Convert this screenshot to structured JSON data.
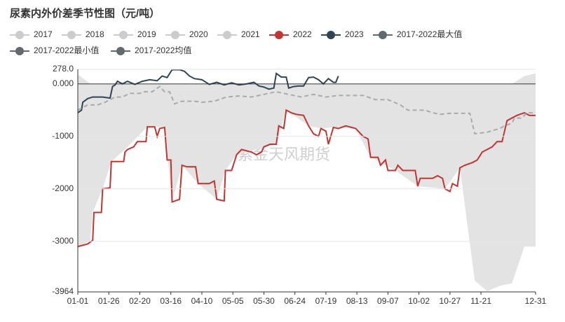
{
  "chart_data": {
    "type": "line",
    "title": "尿素内外价差季节性图（元/吨）",
    "watermark": "紫金天风期货",
    "xlim": [
      0,
      369
    ],
    "xticks": [
      {
        "value": 0,
        "label": "01-01"
      },
      {
        "value": 25,
        "label": "01-26"
      },
      {
        "value": 50,
        "label": "02-20"
      },
      {
        "value": 75,
        "label": "03-16"
      },
      {
        "value": 100,
        "label": "04-10"
      },
      {
        "value": 125,
        "label": "05-05"
      },
      {
        "value": 150,
        "label": "05-30"
      },
      {
        "value": 175,
        "label": "06-24"
      },
      {
        "value": 200,
        "label": "07-19"
      },
      {
        "value": 225,
        "label": "08-13"
      },
      {
        "value": 250,
        "label": "09-07"
      },
      {
        "value": 275,
        "label": "10-02"
      },
      {
        "value": 300,
        "label": "10-27"
      },
      {
        "value": 325,
        "label": "11-21"
      },
      {
        "value": 369,
        "label": "12-31"
      }
    ],
    "ylim": [
      -3964,
      278
    ],
    "yticks": [
      -3964,
      -3000,
      -2000,
      -1000,
      {
        "value": 0,
        "label": "0.000"
      },
      {
        "value": 278,
        "label": "278.0"
      }
    ],
    "grid": true,
    "series": [
      {
        "name": "2017",
        "color": "#cccccc",
        "hidden": true
      },
      {
        "name": "2018",
        "color": "#cccccc",
        "hidden": true
      },
      {
        "name": "2019",
        "color": "#cccccc",
        "hidden": true
      },
      {
        "name": "2020",
        "color": "#cccccc",
        "hidden": true
      },
      {
        "name": "2021",
        "color": "#cccccc",
        "hidden": true
      },
      {
        "name": "2022",
        "color": "#c23531",
        "x": [
          0,
          8,
          12,
          13,
          19,
          20,
          26,
          27,
          37,
          38,
          40,
          45,
          48,
          55,
          56,
          62,
          64,
          66,
          70,
          72,
          75,
          76,
          82,
          84,
          88,
          95,
          97,
          106,
          110,
          112,
          118,
          119,
          124,
          128,
          132,
          140,
          144,
          148,
          150,
          155,
          160,
          162,
          166,
          168,
          172,
          176,
          182,
          186,
          190,
          194,
          196,
          200,
          202,
          206,
          210,
          216,
          224,
          230,
          234,
          236,
          242,
          244,
          248,
          250,
          256,
          258,
          262,
          268,
          272,
          274,
          276,
          286,
          290,
          294,
          296,
          300,
          302,
          306,
          308,
          312,
          318,
          322,
          326,
          330,
          334,
          338,
          342,
          344,
          346,
          350,
          354,
          360,
          364,
          369
        ],
        "values": [
          -3100,
          -3050,
          -2980,
          -2450,
          -2450,
          -2000,
          -1980,
          -1480,
          -1480,
          -1300,
          -1250,
          -1200,
          -1100,
          -1100,
          -820,
          -820,
          -1000,
          -850,
          -830,
          -1450,
          -1450,
          -2250,
          -2200,
          -1550,
          -1580,
          -1580,
          -1900,
          -1900,
          -1850,
          -2200,
          -2230,
          -1650,
          -1650,
          -1350,
          -1250,
          -1300,
          -1350,
          -1300,
          -1200,
          -1150,
          -1150,
          -800,
          -850,
          -500,
          -550,
          -580,
          -600,
          -800,
          -950,
          -1000,
          -850,
          -900,
          -1150,
          -830,
          -850,
          -800,
          -850,
          -1000,
          -1050,
          -1400,
          -1400,
          -1550,
          -1450,
          -1650,
          -1650,
          -1550,
          -1650,
          -1650,
          -1650,
          -1950,
          -1800,
          -1800,
          -1750,
          -1800,
          -2000,
          -2050,
          -1900,
          -1950,
          -1600,
          -1550,
          -1500,
          -1450,
          -1300,
          -1250,
          -1200,
          -1100,
          -1100,
          -900,
          -700,
          -650,
          -600,
          -550,
          -600,
          -600
        ]
      },
      {
        "name": "2023",
        "color": "#2f4554",
        "x": [
          0,
          3,
          4,
          8,
          12,
          20,
          26,
          28,
          30,
          32,
          36,
          40,
          46,
          52,
          58,
          64,
          68,
          72,
          76,
          82,
          86,
          90,
          94,
          100,
          106,
          112,
          118,
          124,
          130,
          136,
          142,
          146,
          150,
          154,
          158,
          160,
          164,
          168,
          170,
          174,
          178,
          182,
          186,
          190,
          194,
          198,
          202,
          206,
          208,
          210
        ],
        "values": [
          -550,
          -500,
          -350,
          -280,
          -250,
          -250,
          -270,
          -50,
          -20,
          50,
          0,
          50,
          -10,
          50,
          80,
          60,
          150,
          120,
          270,
          270,
          240,
          150,
          100,
          80,
          -10,
          30,
          -20,
          20,
          -20,
          0,
          30,
          -40,
          -60,
          -100,
          -80,
          200,
          130,
          130,
          -80,
          -50,
          -40,
          -40,
          120,
          130,
          80,
          0,
          100,
          30,
          30,
          150
        ]
      },
      {
        "name": "2017-2022最大值",
        "color": "#616a70",
        "x": [
          0,
          10,
          12,
          20,
          27,
          38,
          56,
          70,
          76,
          84,
          97,
          112,
          119,
          128,
          160,
          168,
          186,
          196,
          206,
          224,
          236,
          256,
          274,
          296,
          308,
          320,
          330,
          340,
          350,
          360,
          369
        ],
        "values": [
          180,
          0,
          0,
          0,
          0,
          0,
          0,
          0,
          0,
          0,
          0,
          0,
          0,
          0,
          0,
          0,
          0,
          0,
          0,
          0,
          0,
          0,
          0,
          0,
          0,
          0,
          0,
          0,
          0,
          150,
          200
        ]
      },
      {
        "name": "2017-2022最小值",
        "color": "#616a70",
        "x": [
          0,
          10,
          12,
          20,
          27,
          38,
          56,
          70,
          76,
          84,
          97,
          112,
          119,
          128,
          160,
          168,
          186,
          196,
          206,
          224,
          236,
          256,
          274,
          296,
          308,
          320,
          330,
          340,
          350,
          360,
          369
        ],
        "values": [
          -3100,
          -3000,
          -2450,
          -2000,
          -1480,
          -1250,
          -820,
          -830,
          -2250,
          -1550,
          -1900,
          -2200,
          -1650,
          -1350,
          -1150,
          -500,
          -800,
          -850,
          -830,
          -850,
          -1400,
          -1650,
          -1950,
          -2000,
          -1600,
          -3750,
          -3950,
          -3850,
          -3800,
          -3100,
          -3100
        ]
      },
      {
        "name": "2017-2022均值",
        "color": "#616a70",
        "line_color": "#aaaaaa",
        "dashed": true,
        "x": [
          0,
          8,
          16,
          22,
          30,
          36,
          42,
          50,
          54,
          60,
          66,
          70,
          74,
          78,
          84,
          94,
          100,
          110,
          120,
          130,
          140,
          150,
          160,
          170,
          180,
          190,
          200,
          210,
          230,
          240,
          250,
          260,
          266,
          280,
          286,
          292,
          300,
          316,
          320,
          330,
          340,
          344,
          350,
          352,
          358,
          362,
          369
        ],
        "values": [
          -500,
          -400,
          -400,
          -350,
          -250,
          -250,
          -180,
          -180,
          -150,
          -150,
          -50,
          -150,
          -150,
          -380,
          -330,
          -330,
          -350,
          -330,
          -250,
          -230,
          -250,
          -200,
          -150,
          -200,
          -250,
          -200,
          -250,
          -220,
          -220,
          -300,
          -300,
          -400,
          -500,
          -500,
          -550,
          -580,
          -560,
          -560,
          -950,
          -920,
          -850,
          -800,
          -750,
          -650,
          -650,
          -550,
          -550
        ]
      }
    ]
  }
}
